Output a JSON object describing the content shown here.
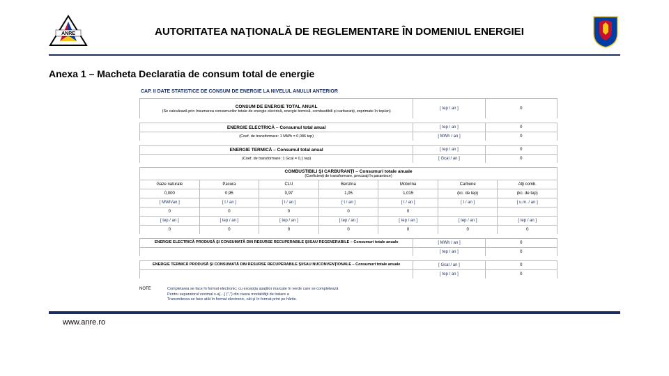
{
  "header": {
    "title": "AUTORITATEA NAŢIONALĂ DE REGLEMENTARE ÎN DOMENIUL ENERGIEI"
  },
  "subtitle": "Anexa 1 – Macheta Declaratia de consum total de energie",
  "cap_title": "CAP. II   DATE STATISTICE DE CONSUM DE ENERGIE LA NIVELUL ANULUI ANTERIOR",
  "total": {
    "label": "CONSUM DE ENERGIE TOTAL ANUAL",
    "sub": "(Se calculează prin însumarea consumurilor totale de energie electrică, energie termică, combustibili şi carburanţi, exprimate în tep/an)",
    "unit": "[ tep / an ]",
    "val": "0"
  },
  "elec": {
    "label": "ENERGIE ELECTRICĂ – Consumul total anual",
    "sub": "(Coef. de transformare: 1 MWh = 0,086 tep)",
    "u1": "[ tep / an ]",
    "v1": "0",
    "u2": "[ MWh / an ]",
    "v2": "0"
  },
  "term": {
    "label": "ENERGIE TERMICĂ – Consumul total anual",
    "sub": "(Coef. de transformare: 1 Gcal = 0,1 tep)",
    "u1": "[ tep / an ]",
    "v1": "0",
    "u2": "[ Gcal / an ]",
    "v2": "0"
  },
  "fuel": {
    "label": "COMBUSTIBILI ŞI CARBURANŢI – Consumuri totale anuale",
    "sub": "(Coeficienţi de transformare, precizaţi în paranteze)",
    "cols": [
      "Gaze naturale",
      "Pacura",
      "CLU",
      "Benzina",
      "Motorina",
      "Carbune",
      "Alţi comb."
    ],
    "coef": [
      "0,000",
      "0,95",
      "0,97",
      "1,05",
      "1,015",
      "(kc. de tep)",
      "(kc. de tep)"
    ],
    "units1": [
      "[ MWh/an ]",
      "[ t / an ]",
      "[ t / an ]",
      "[ t / an ]",
      "[ t / an ]",
      "[ t / an ]",
      "[ u.m. / an ]"
    ],
    "vals1": [
      "0",
      "0",
      "0",
      "0",
      "0",
      "",
      ""
    ],
    "units2": [
      "[ tep / an ]",
      "[ tep / an ]",
      "[ tep / an ]",
      "[ tep / an ]",
      "[ tep / an ]",
      "[ tep / an ]",
      "[ tep / an ]"
    ],
    "vals2": [
      "0",
      "0",
      "0",
      "0",
      "0",
      "0",
      "0"
    ]
  },
  "prod_elec": {
    "label": "ENERGIE ELECTRICĂ PRODUSĂ ŞI CONSUMATĂ DIN RESURSE RECUPERABILE ŞI/SAU REGENERABILE – Consumuri totale anuale",
    "u1": "[ MWh / an ]",
    "v1": "0",
    "u2": "[ tep / an ]",
    "v2": "0"
  },
  "prod_term": {
    "label": "ENERGIE TERMICĂ PRODUSĂ ŞI CONSUMATĂ DIN RESURSE RECUPERABILE ŞI/SAU NUCONVENŢIONALE – Consumuri totale anuale",
    "u1": "[ Gcal / an ]",
    "v1": "0",
    "u2": "[ tep / an ]",
    "v2": "0"
  },
  "note": {
    "label": "NOTE",
    "l1": "Completarea se face în format electronic; cu excepţia spaţiilor marcate în verde care se completează",
    "l2": "Pentru separatorul zecimal s-a[…] (\",\") din cauza modalităţii de tratare a",
    "l3": "Transmiterea se face atât în format electronic, cât şi în format print pe hârtie."
  },
  "footer": "www.anre.ro",
  "colors": {
    "navy": "#1a2d5c",
    "red": "#c8102e",
    "yellow": "#f5c518",
    "blue": "#003da5"
  }
}
